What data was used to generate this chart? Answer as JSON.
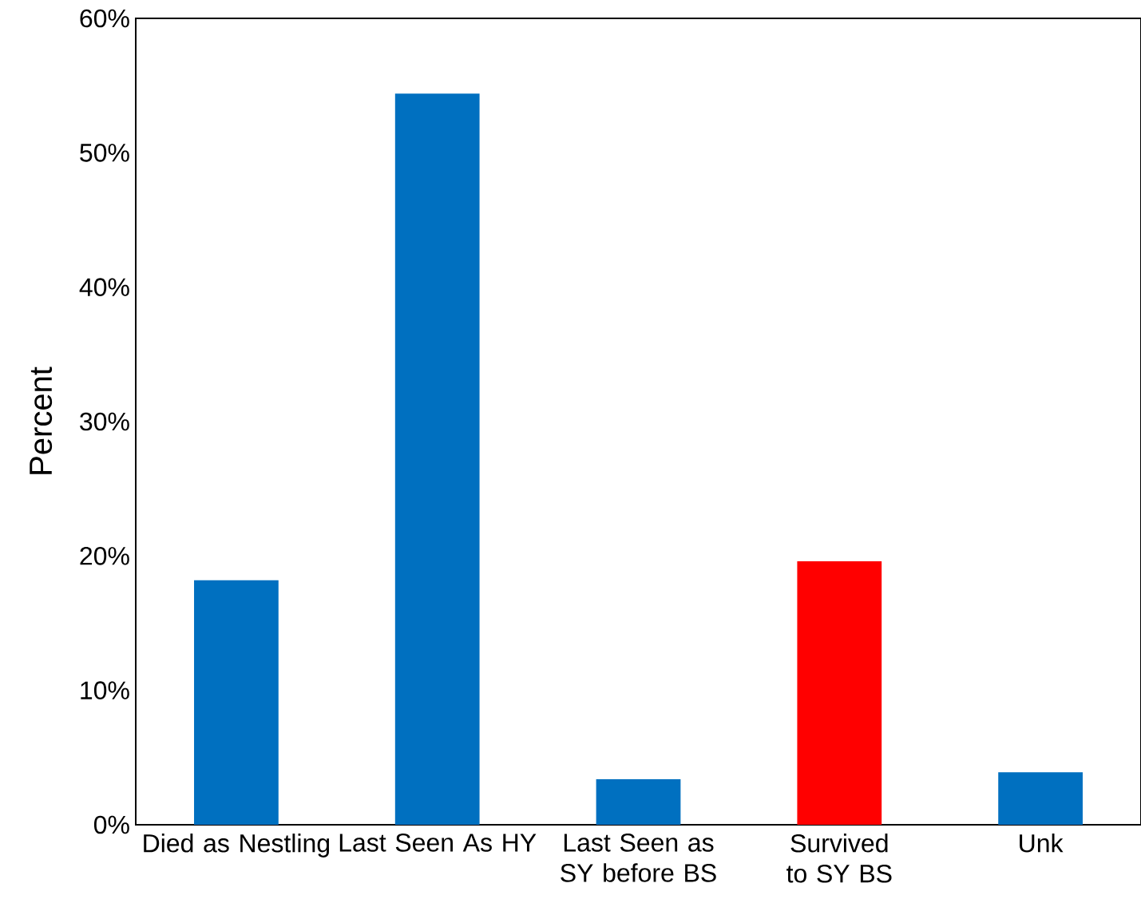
{
  "chart_data": {
    "type": "bar",
    "ylabel": "Percent",
    "categories": [
      "Died as Nestling",
      "Last Seen As HY",
      "Last Seen as SY before BS",
      "Survived to SY BS",
      "Unk"
    ],
    "values": [
      18.2,
      54.4,
      3.4,
      19.6,
      3.9
    ],
    "colors": [
      "#0070c0",
      "#0070c0",
      "#0070c0",
      "#ff0000",
      "#0070c0"
    ],
    "ylim": [
      0,
      60
    ],
    "yticks": [
      {
        "value": 0,
        "label": "0%"
      },
      {
        "value": 10,
        "label": "10%"
      },
      {
        "value": 20,
        "label": "20%"
      },
      {
        "value": 30,
        "label": "30%"
      },
      {
        "value": 40,
        "label": "40%"
      },
      {
        "value": 50,
        "label": "50%"
      },
      {
        "value": 60,
        "label": "60%"
      }
    ],
    "grid": false
  }
}
